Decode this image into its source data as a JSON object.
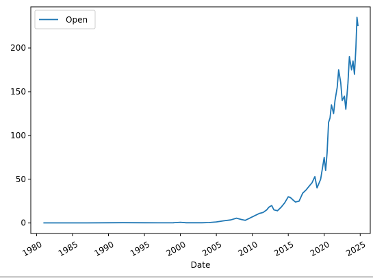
{
  "chart_data": {
    "type": "line",
    "title": "",
    "xlabel": "Date",
    "ylabel": "",
    "xlim": [
      1979.2,
      2026.4
    ],
    "ylim": [
      -12,
      247
    ],
    "x_ticks": [
      1980,
      1985,
      1990,
      1995,
      2000,
      2005,
      2010,
      2015,
      2020,
      2025
    ],
    "x_tick_labels": [
      "1980",
      "1985",
      "1990",
      "1995",
      "2000",
      "2005",
      "2010",
      "2015",
      "2020",
      "2025"
    ],
    "y_ticks": [
      0,
      50,
      100,
      150,
      200
    ],
    "y_tick_labels": [
      "0",
      "50",
      "100",
      "150",
      "200"
    ],
    "grid": false,
    "legend": {
      "placement": "top-left",
      "entries": [
        "Open"
      ]
    },
    "series": [
      {
        "name": "Open",
        "color": "#1f77b4",
        "x": [
          1980.95,
          1983,
          1985,
          1987,
          1990,
          1992,
          1995,
          1997,
          1999,
          2000,
          2000.8,
          2002,
          2003,
          2004,
          2005,
          2006,
          2007,
          2007.8,
          2008.5,
          2009,
          2009.5,
          2010,
          2011,
          2011.5,
          2012,
          2012.3,
          2012.7,
          2013,
          2013.5,
          2014,
          2014.5,
          2015,
          2015.3,
          2015.7,
          2016,
          2016.5,
          2017,
          2017.5,
          2018,
          2018.3,
          2018.7,
          2019,
          2019.5,
          2020,
          2020.2,
          2020.4,
          2020.6,
          2020.8,
          2021,
          2021.3,
          2021.5,
          2021.8,
          2022,
          2022.3,
          2022.5,
          2022.8,
          2023,
          2023.3,
          2023.5,
          2023.8,
          2024,
          2024.2,
          2024.4,
          2024.55,
          2024.7
        ],
        "y": [
          0.1,
          0.1,
          0.1,
          0.1,
          0.3,
          0.4,
          0.3,
          0.2,
          0.3,
          0.8,
          0.3,
          0.3,
          0.3,
          0.5,
          1.2,
          2.5,
          3.5,
          5.5,
          4,
          3,
          5,
          7,
          11,
          12,
          15,
          18,
          20,
          15,
          14,
          18,
          23,
          30,
          29,
          26,
          24,
          25,
          34,
          38,
          43,
          46,
          53,
          40,
          50,
          75,
          60,
          80,
          115,
          120,
          135,
          125,
          140,
          155,
          175,
          160,
          140,
          145,
          130,
          160,
          190,
          175,
          185,
          170,
          200,
          235,
          225
        ]
      }
    ]
  }
}
